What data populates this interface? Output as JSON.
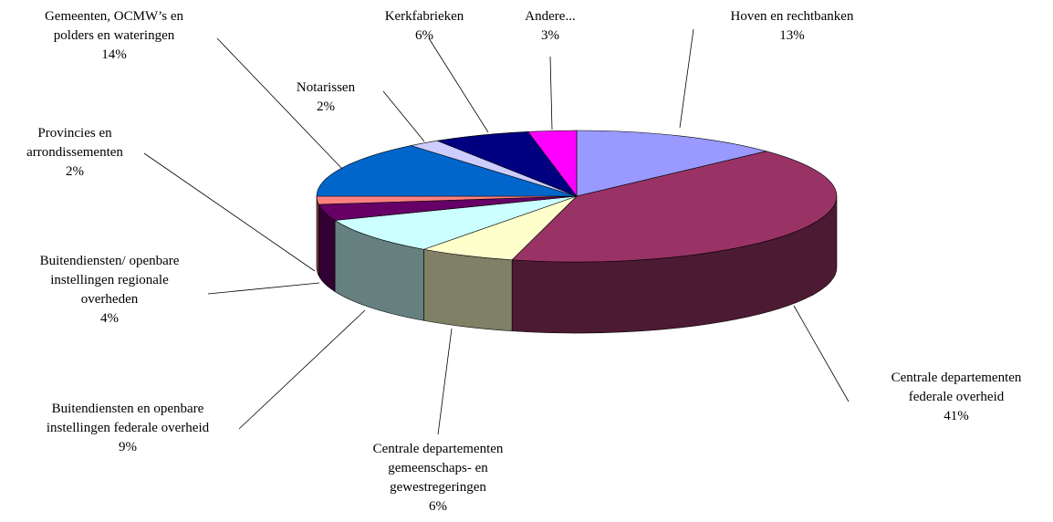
{
  "chart_data": {
    "type": "pie3d",
    "categories": [
      "Hoven en rechtbanken",
      "Centrale departementen federale overheid",
      "Centrale departementen gemeenschaps- en gewestregeringen",
      "Buitendiensten en openbare instellingen federale overheid",
      "Buitendiensten/ openbare instellingen regionale overheden",
      "Provincies en arrondissementen",
      "Gemeenten, OCMW’s en polders en wateringen",
      "Notarissen",
      "Kerkfabrieken",
      "Andere..."
    ],
    "values": [
      13,
      41,
      6,
      9,
      4,
      2,
      14,
      2,
      6,
      3
    ],
    "value_labels": [
      "13%",
      "41%",
      "6%",
      "9%",
      "4%",
      "2%",
      "14%",
      "2%",
      "6%",
      "3%"
    ],
    "colors": [
      "#9999ff",
      "#993366",
      "#ffffcc",
      "#ccffff",
      "#660066",
      "#ff8080",
      "#0066cc",
      "#ccccff",
      "#000080",
      "#ff00ff"
    ]
  }
}
